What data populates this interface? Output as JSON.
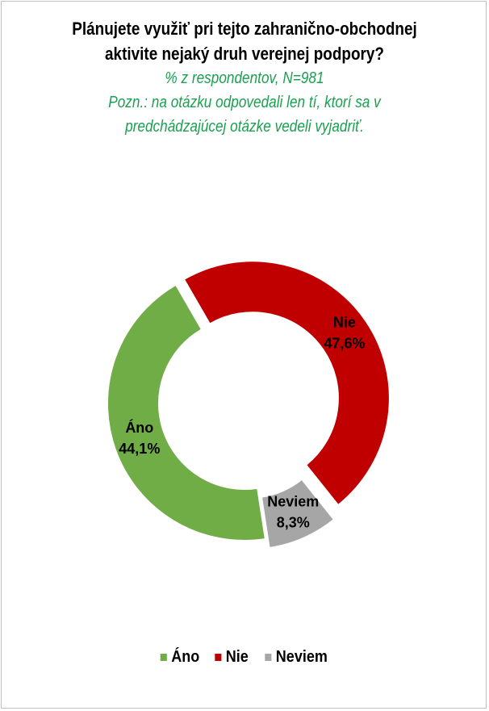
{
  "header": {
    "title_line1": "Plánujete využiť pri tejto zahranično-obchodnej",
    "title_line2": "aktivite nejaký druh verejnej podpory?",
    "subtitle_line1": "% z respondentov, N=981",
    "note_line1": "Pozn.: na otázku odpovedali len tí, ktorí sa v",
    "note_line2": "predchádzajúcej otázke vedeli vyjadriť."
  },
  "colors": {
    "subtitle": "#1aa050",
    "ano": "#70ad47",
    "nie": "#c00000",
    "neviem": "#a6a6a6"
  },
  "chart_data": {
    "type": "pie",
    "variant": "donut",
    "slices": [
      {
        "label": "Nie",
        "value": 47.6,
        "value_label": "47,6%",
        "color": "#c00000",
        "exploded": true
      },
      {
        "label": "Neviem",
        "value": 8.3,
        "value_label": "8,3%",
        "color": "#a6a6a6",
        "exploded": true
      },
      {
        "label": "Áno",
        "value": 44.1,
        "value_label": "44,1%",
        "color": "#70ad47",
        "exploded": false
      }
    ],
    "legend": {
      "position": "bottom",
      "items": [
        {
          "label": "Áno",
          "color": "#70ad47"
        },
        {
          "label": "Nie",
          "color": "#c00000"
        },
        {
          "label": "Neviem",
          "color": "#a6a6a6"
        }
      ]
    }
  }
}
